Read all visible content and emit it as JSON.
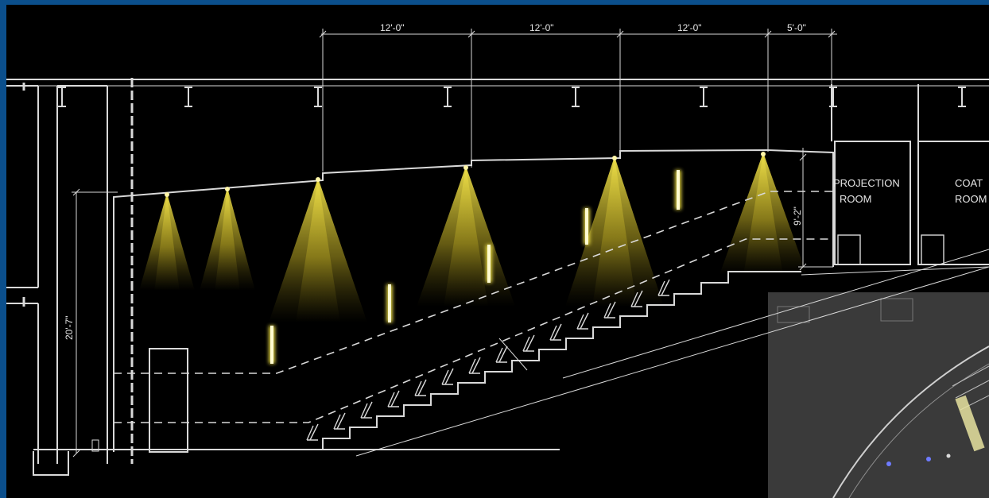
{
  "dimensions": {
    "top": [
      "12'-0\"",
      "12'-0\"",
      "12'-0\"",
      "5'-0\""
    ],
    "height_left": "20'-7\"",
    "height_right": "9'-2\""
  },
  "rooms": {
    "projection": [
      "PROJECTION",
      "ROOM"
    ],
    "coat": [
      "COAT",
      "ROOM"
    ]
  },
  "colors": {
    "frame": "#0b4f8c",
    "background": "#000000",
    "linework": "#d9d9d9",
    "light": "#f2e34a",
    "inset": "#3a3a3a"
  },
  "icons": [
    "i-beam-icon",
    "downlight-cone-icon",
    "wall-sconce-icon",
    "seat-icon",
    "floor-light-dot-icon"
  ]
}
